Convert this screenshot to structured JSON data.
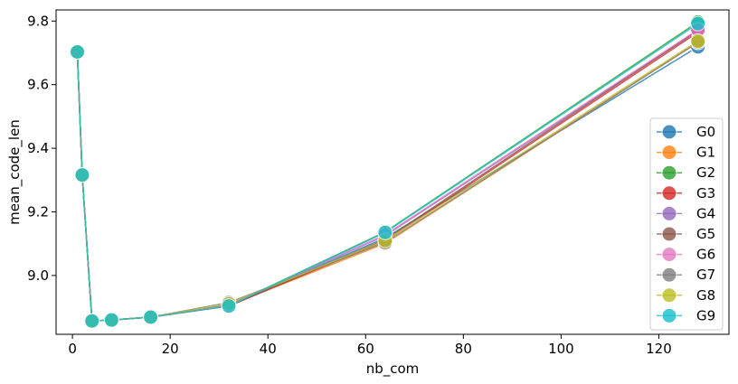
{
  "chart_data": {
    "type": "line",
    "title": "",
    "xlabel": "nb_com",
    "ylabel": "mean_code_len",
    "xlim": [
      -3.35,
      134.35
    ],
    "ylim": [
      8.815,
      9.835
    ],
    "xticks": [
      0,
      20,
      40,
      60,
      80,
      100,
      120
    ],
    "yticks": [
      9.0,
      9.2,
      9.4,
      9.6,
      9.8
    ],
    "ytick_labels": [
      "9.0",
      "9.2",
      "9.4",
      "9.6",
      "9.8"
    ],
    "grid": false,
    "legend_position": "right",
    "x": [
      1,
      2,
      4,
      8,
      16,
      32,
      64,
      128
    ],
    "series": [
      {
        "name": "G0",
        "color": "#1f77b4",
        "values": [
          9.703,
          9.316,
          8.857,
          8.86,
          8.869,
          8.907,
          9.118,
          9.719
        ]
      },
      {
        "name": "G1",
        "color": "#ff7f0e",
        "values": [
          9.703,
          9.316,
          8.857,
          8.86,
          8.869,
          8.906,
          9.101,
          9.733
        ]
      },
      {
        "name": "G2",
        "color": "#2ca02c",
        "values": [
          9.703,
          9.316,
          8.857,
          8.86,
          8.869,
          8.905,
          9.137,
          9.797
        ]
      },
      {
        "name": "G3",
        "color": "#d62728",
        "values": [
          9.703,
          9.316,
          8.857,
          8.86,
          8.869,
          8.904,
          9.109,
          9.765
        ]
      },
      {
        "name": "G4",
        "color": "#9467bd",
        "values": [
          9.703,
          9.316,
          8.857,
          8.86,
          8.869,
          8.907,
          9.125,
          9.77
        ]
      },
      {
        "name": "G5",
        "color": "#8c564b",
        "values": [
          9.703,
          9.316,
          8.857,
          8.86,
          8.869,
          8.904,
          9.113,
          9.771
        ]
      },
      {
        "name": "G6",
        "color": "#e377c2",
        "values": [
          9.703,
          9.316,
          8.857,
          8.86,
          8.869,
          8.906,
          9.128,
          9.773
        ]
      },
      {
        "name": "G7",
        "color": "#7f7f7f",
        "values": [
          9.703,
          9.316,
          8.857,
          8.86,
          8.869,
          8.915,
          9.104,
          9.733
        ]
      },
      {
        "name": "G8",
        "color": "#bcbd22",
        "values": [
          9.703,
          9.316,
          8.857,
          8.86,
          8.869,
          8.911,
          9.11,
          9.737
        ]
      },
      {
        "name": "G9",
        "color": "#17becf",
        "values": [
          9.703,
          9.316,
          8.857,
          8.86,
          8.869,
          8.904,
          9.135,
          9.792
        ]
      }
    ]
  }
}
